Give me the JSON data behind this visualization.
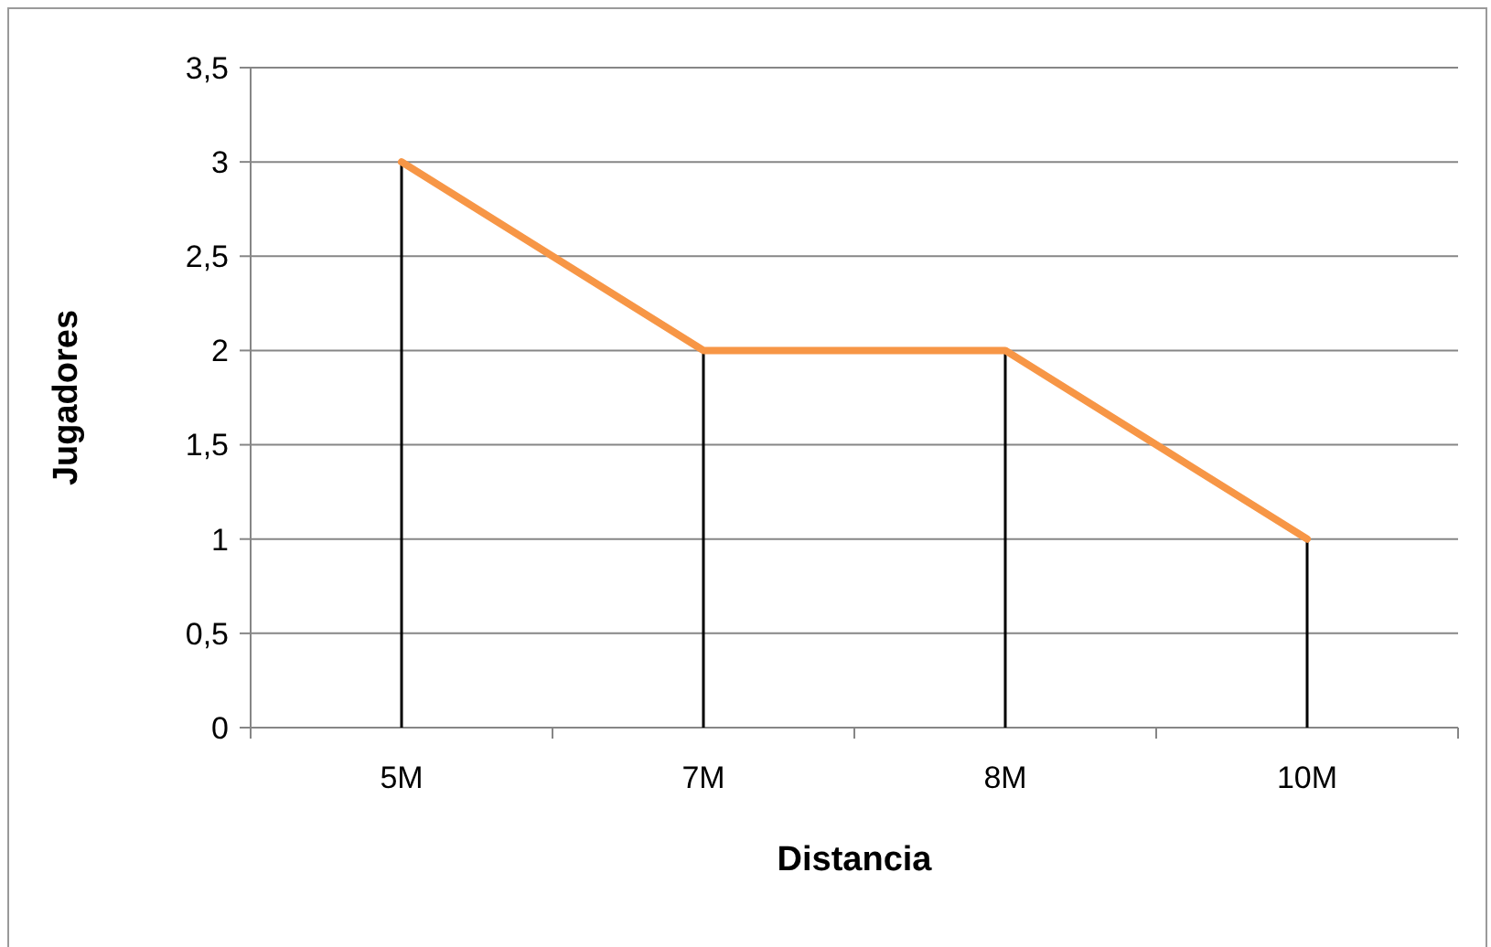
{
  "chart_data": {
    "type": "line",
    "xlabel": "Distancia",
    "ylabel": "Jugadores",
    "categories": [
      "5M",
      "7M",
      "8M",
      "10M"
    ],
    "series": [
      {
        "type": "bar",
        "color": "#000000",
        "values": [
          3,
          2,
          2,
          1
        ]
      },
      {
        "color": "#f79646",
        "values": [
          3,
          2,
          2,
          1
        ]
      }
    ],
    "ylim": [
      0,
      3.5
    ],
    "yticks": [
      {
        "value": 0,
        "label": "0"
      },
      {
        "value": 0.5,
        "label": "0,5"
      },
      {
        "value": 1,
        "label": "1"
      },
      {
        "value": 1.5,
        "label": "1,5"
      },
      {
        "value": 2,
        "label": "2"
      },
      {
        "value": 2.5,
        "label": "2,5"
      },
      {
        "value": 3,
        "label": "3"
      },
      {
        "value": 3.5,
        "label": "3,5"
      }
    ],
    "grid": "y",
    "marker": "none",
    "line_style": "solid"
  }
}
